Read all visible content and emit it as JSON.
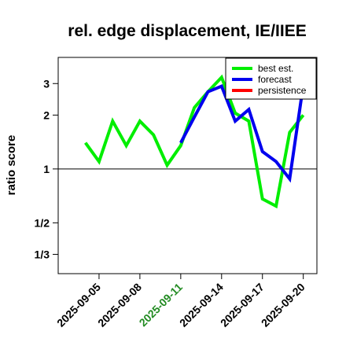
{
  "chart_data": {
    "type": "line",
    "title": "rel. edge displacement, IE/IIEE",
    "xlabel": "",
    "ylabel": "ratio score",
    "y_scale": "log",
    "ylim": [
      0.26,
      4.2
    ],
    "xlim": [
      "2025-09-02",
      "2025-09-21"
    ],
    "y_ticks": [
      {
        "value": 0.3333,
        "label": "1/3"
      },
      {
        "value": 0.5,
        "label": "1/2"
      },
      {
        "value": 1,
        "label": "1"
      },
      {
        "value": 2,
        "label": "2"
      },
      {
        "value": 3,
        "label": "3"
      }
    ],
    "x_ticks": [
      {
        "date": "2025-09-05",
        "label": "2025-09-05",
        "color": "#000000"
      },
      {
        "date": "2025-09-08",
        "label": "2025-09-08",
        "color": "#000000"
      },
      {
        "date": "2025-09-11",
        "label": "2025-09-11",
        "color": "#228B22"
      },
      {
        "date": "2025-09-14",
        "label": "2025-09-14",
        "color": "#000000"
      },
      {
        "date": "2025-09-17",
        "label": "2025-09-17",
        "color": "#000000"
      },
      {
        "date": "2025-09-20",
        "label": "2025-09-20",
        "color": "#000000"
      }
    ],
    "reference_line": 1,
    "grid": false,
    "legend_position": "top-right",
    "series": [
      {
        "name": "best est.",
        "color": "#00ee00",
        "points": [
          [
            "2025-09-04",
            1.4
          ],
          [
            "2025-09-05",
            1.1
          ],
          [
            "2025-09-06",
            1.85
          ],
          [
            "2025-09-07",
            1.35
          ],
          [
            "2025-09-08",
            1.85
          ],
          [
            "2025-09-09",
            1.55
          ],
          [
            "2025-09-10",
            1.05
          ],
          [
            "2025-09-11",
            1.35
          ],
          [
            "2025-09-12",
            2.2
          ],
          [
            "2025-09-13",
            2.7
          ],
          [
            "2025-09-14",
            3.25
          ],
          [
            "2025-09-15",
            2.05
          ],
          [
            "2025-09-16",
            1.85
          ],
          [
            "2025-09-17",
            0.68
          ],
          [
            "2025-09-18",
            0.62
          ],
          [
            "2025-09-19",
            1.6
          ],
          [
            "2025-09-20",
            2.0
          ]
        ]
      },
      {
        "name": "forecast",
        "color": "#0000ee",
        "points": [
          [
            "2025-09-11",
            1.4
          ],
          [
            "2025-09-12",
            1.95
          ],
          [
            "2025-09-13",
            2.7
          ],
          [
            "2025-09-14",
            2.9
          ],
          [
            "2025-09-15",
            1.85
          ],
          [
            "2025-09-16",
            2.15
          ],
          [
            "2025-09-17",
            1.25
          ],
          [
            "2025-09-18",
            1.1
          ],
          [
            "2025-09-19",
            0.88
          ],
          [
            "2025-09-20",
            2.95
          ]
        ]
      },
      {
        "name": "persistence",
        "color": "#ff0000",
        "points": []
      }
    ]
  }
}
